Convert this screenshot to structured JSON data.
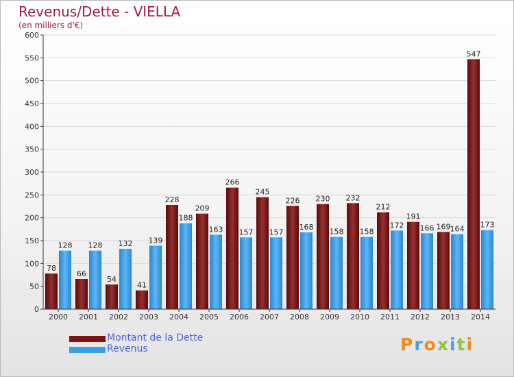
{
  "title": "Revenus/Dette - VIELLA",
  "subtitle": "(en milliers d'€)",
  "brand": "Proxiti",
  "colors": {
    "dette": "#7a1414",
    "revenus": "#3a9ee6",
    "title": "#a01c48",
    "legend_text": "#4d64d8"
  },
  "chart_data": {
    "type": "bar",
    "title": "Revenus/Dette - VIELLA",
    "subtitle": "(en milliers d'€)",
    "xlabel": "",
    "ylabel": "",
    "ylim": [
      0,
      600
    ],
    "yticks": [
      0,
      50,
      100,
      150,
      200,
      250,
      300,
      350,
      400,
      450,
      500,
      550,
      600
    ],
    "grid": true,
    "legend_position": "bottom-left",
    "categories": [
      "2000",
      "2001",
      "2002",
      "2003",
      "2004",
      "2005",
      "2006",
      "2007",
      "2008",
      "2009",
      "2010",
      "2011",
      "2012",
      "2013",
      "2014"
    ],
    "series": [
      {
        "name": "Montant de la Dette",
        "color": "#7a1414",
        "values": [
          78,
          66,
          54,
          41,
          228,
          209,
          266,
          245,
          226,
          230,
          232,
          212,
          191,
          169,
          547
        ]
      },
      {
        "name": "Revenus",
        "color": "#3a9ee6",
        "values": [
          128,
          128,
          132,
          139,
          188,
          163,
          157,
          157,
          168,
          158,
          158,
          172,
          166,
          164,
          173
        ]
      }
    ]
  }
}
